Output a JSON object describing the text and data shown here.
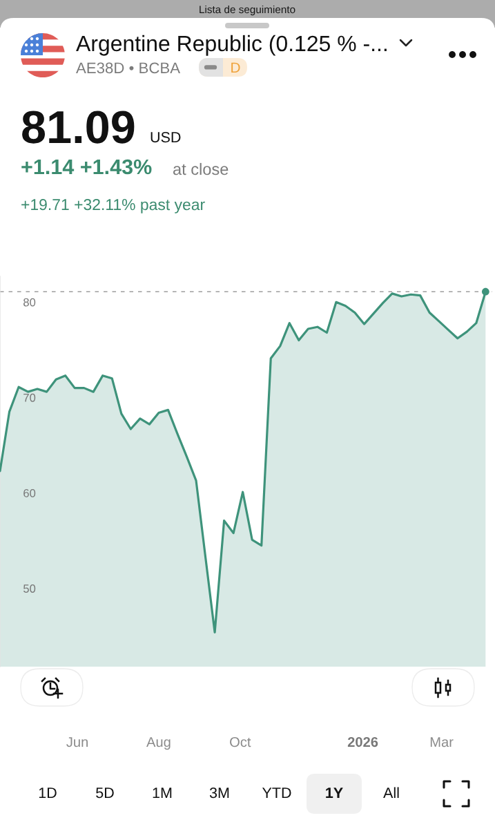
{
  "chart_data": {
    "type": "area",
    "title": "Argentine Republic (0.125 % -...",
    "subtitle": "AE38D • BCBA",
    "annotations": [
      "Lista de seguimiento",
      "D",
      "81.09",
      "USD",
      "+1.14 +1.43%",
      "at close",
      "+19.71 +32.11% past year",
      "1D",
      "5D",
      "1M",
      "3M",
      "YTD",
      "1Y",
      "All"
    ],
    "x": [
      "2025-04-04",
      "2025-04-11",
      "2025-04-18",
      "2025-04-25",
      "2025-05-02",
      "2025-05-09",
      "2025-05-16",
      "2025-05-23",
      "2025-05-30",
      "2025-06-06",
      "2025-06-13",
      "2025-06-20",
      "2025-06-27",
      "2025-07-04",
      "2025-07-11",
      "2025-07-18",
      "2025-07-25",
      "2025-08-01",
      "2025-08-08",
      "2025-08-15",
      "2025-08-22",
      "2025-08-29",
      "2025-09-05",
      "2025-09-12",
      "2025-09-19",
      "2025-09-26",
      "2025-10-03",
      "2025-10-10",
      "2025-10-17",
      "2025-10-24",
      "2025-10-31",
      "2025-11-07",
      "2025-11-14",
      "2025-11-21",
      "2025-11-28",
      "2025-12-05",
      "2025-12-12",
      "2025-12-19",
      "2025-12-26",
      "2026-01-02",
      "2026-01-09",
      "2026-01-16",
      "2026-01-23",
      "2026-01-30",
      "2026-02-06",
      "2026-02-13",
      "2026-02-20",
      "2026-02-27",
      "2026-03-06",
      "2026-03-13",
      "2026-03-20",
      "2026-03-27",
      "2026-04-03"
    ],
    "series": [
      {
        "color": "#3e937b",
        "values": [
          62.3,
          68.5,
          71.1,
          70.6,
          70.9,
          70.6,
          71.9,
          72.3,
          71.0,
          71.0,
          70.6,
          72.3,
          72.0,
          68.3,
          66.7,
          67.8,
          67.2,
          68.4,
          68.7,
          66.2,
          63.8,
          61.3,
          53.3,
          45.4,
          57.1,
          55.8,
          60.1,
          55.1,
          54.5,
          74.1,
          75.4,
          77.8,
          76.0,
          77.2,
          77.4,
          76.8,
          80.0,
          79.6,
          78.9,
          77.7,
          78.8,
          79.9,
          80.9,
          80.6,
          80.8,
          80.7,
          78.9,
          78.0,
          77.1,
          76.2,
          76.9,
          77.8,
          81.09
        ]
      },
      {
        "type": "scatter",
        "color": "#3e937b",
        "x": [
          "2026-04-03"
        ],
        "values": [
          81.09
        ]
      }
    ],
    "xlim": [
      "2025-04-04",
      "2026-04-08"
    ],
    "xticks": [
      {
        "value": "2025-06-01",
        "label": "Jun"
      },
      {
        "value": "2025-08-01",
        "label": "Aug"
      },
      {
        "value": "2025-10-01",
        "label": "Oct"
      },
      {
        "value": "2026-01-01",
        "label": "2026"
      },
      {
        "value": "2026-03-01",
        "label": "Mar"
      }
    ],
    "ylim": [
      41.8,
      82.7
    ],
    "yticks": [
      50,
      60,
      70,
      80
    ],
    "ref_lines": [
      {
        "axis": "y",
        "value": 81.09,
        "line_style": "dashed",
        "color": "#9e9e9e"
      }
    ]
  }
}
